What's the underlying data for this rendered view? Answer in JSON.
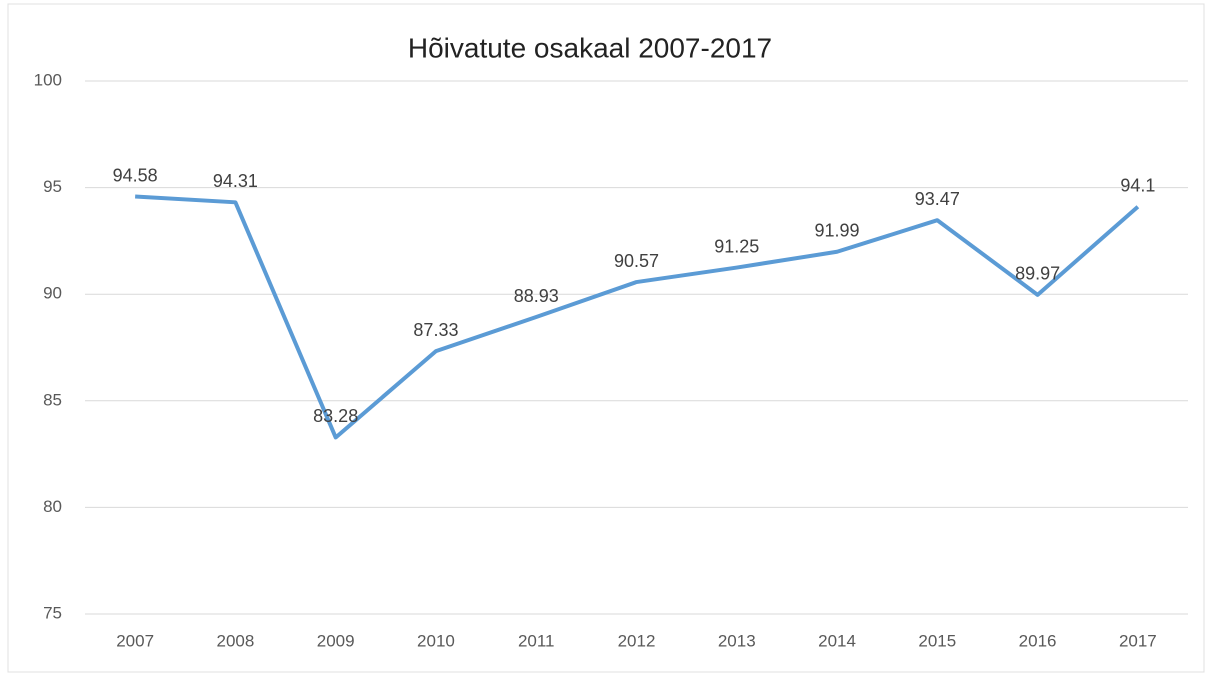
{
  "chart_data": {
    "type": "line",
    "title": "Hõivatute osakaal 2007-2017",
    "categories": [
      "2007",
      "2008",
      "2009",
      "2010",
      "2011",
      "2012",
      "2013",
      "2014",
      "2015",
      "2016",
      "2017"
    ],
    "values": [
      94.58,
      94.31,
      83.28,
      87.33,
      88.93,
      90.57,
      91.25,
      91.99,
      93.47,
      89.97,
      94.1
    ],
    "color": "#5b9bd5",
    "ylim": [
      75,
      100
    ],
    "yticks": [
      75,
      80,
      85,
      90,
      95,
      100
    ],
    "grid": true
  }
}
